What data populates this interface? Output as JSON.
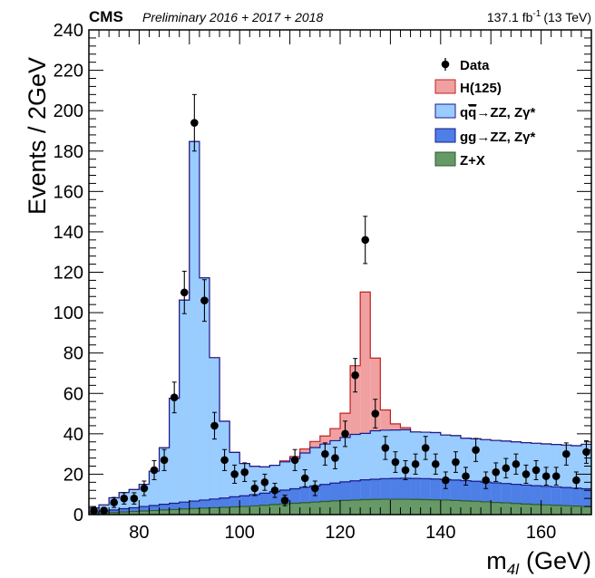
{
  "header": {
    "experiment": "CMS",
    "subtitle": "Preliminary 2016 + 2017 + 2018",
    "lumi_value": "137.1 fb",
    "lumi_exp": "-1",
    "lumi_energy": "(13 TeV)"
  },
  "legend": {
    "data": "Data",
    "higgs": "H(125)",
    "qqzz_q": "q",
    "qqzz_qbar": "q",
    "qqzz_rest": "→ZZ, Zγ*",
    "ggzz": "gg→ZZ, Zγ*",
    "zx": "Z+X"
  },
  "axes": {
    "ylabel": "Events / 2GeV",
    "xlabel_main": "m",
    "xlabel_sub": "4l",
    "xlabel_unit": "(GeV)"
  },
  "colors": {
    "higgs_fill": "#f0a0a0",
    "higgs_line": "#c02020",
    "qqzz_fill": "#99ccff",
    "qqzz_line": "#1a1a8c",
    "ggzz_fill": "#4d7fe6",
    "ggzz_line": "#1a1a8c",
    "zx_fill": "#669966",
    "zx_line": "#2d5a2d",
    "data": "#000000"
  },
  "chart_data": {
    "type": "histogram",
    "xlim": [
      70,
      170
    ],
    "ylim": [
      0,
      240
    ],
    "xticks": [
      80,
      100,
      120,
      140,
      160
    ],
    "yticks": [
      0,
      20,
      40,
      60,
      80,
      100,
      120,
      140,
      160,
      180,
      200,
      220,
      240
    ],
    "bin_edges": [
      70,
      72,
      74,
      76,
      78,
      80,
      82,
      84,
      86,
      88,
      90,
      92,
      94,
      96,
      98,
      100,
      102,
      104,
      106,
      108,
      110,
      112,
      114,
      116,
      118,
      120,
      122,
      124,
      126,
      128,
      130,
      132,
      134,
      136,
      138,
      140,
      142,
      144,
      146,
      148,
      150,
      152,
      154,
      156,
      158,
      160,
      162,
      164,
      166,
      168,
      170
    ],
    "stack_zx": [
      0.5,
      0.8,
      1.0,
      1.3,
      1.5,
      1.8,
      2.0,
      2.3,
      2.5,
      2.8,
      3.0,
      3.2,
      3.4,
      3.6,
      3.8,
      4.0,
      4.3,
      4.6,
      5.0,
      5.3,
      5.6,
      5.9,
      6.2,
      6.5,
      6.8,
      7.0,
      7.2,
      7.4,
      7.5,
      7.6,
      7.6,
      7.6,
      7.5,
      7.4,
      7.3,
      7.2,
      7.0,
      6.8,
      6.6,
      6.3,
      6.0,
      5.8,
      5.5,
      5.2,
      5.0,
      4.8,
      4.6,
      4.4,
      4.2,
      4.0
    ],
    "stack_ggzz": [
      0.8,
      1.0,
      1.3,
      1.6,
      1.9,
      2.2,
      2.5,
      2.8,
      3.1,
      3.4,
      3.7,
      4.0,
      4.3,
      4.6,
      5.0,
      5.3,
      5.6,
      6.0,
      6.4,
      6.8,
      7.2,
      7.6,
      8.0,
      8.4,
      8.8,
      9.2,
      9.5,
      9.8,
      10.0,
      10.2,
      10.3,
      10.4,
      10.4,
      10.4,
      10.3,
      10.2,
      10.1,
      10.0,
      9.9,
      9.8,
      9.7,
      9.6,
      9.5,
      9.4,
      9.3,
      9.2,
      9.1,
      9.0,
      8.9,
      8.8
    ],
    "stack_qqzz": [
      2,
      3,
      6,
      8,
      9,
      11,
      17,
      28,
      52,
      100,
      178,
      110,
      70,
      38,
      22,
      16,
      14,
      13,
      13,
      14,
      15,
      17,
      19,
      20,
      21,
      22,
      23,
      23,
      24,
      24,
      24,
      24,
      23,
      23,
      23,
      22,
      22,
      21,
      21,
      21,
      21,
      21,
      21,
      21,
      21,
      21,
      21,
      21,
      21,
      22
    ],
    "stack_higgs": [
      0,
      0,
      0,
      0,
      0,
      0,
      0,
      0,
      0,
      0,
      0,
      0,
      0,
      0,
      0,
      0,
      0,
      0,
      0,
      0.5,
      1,
      2,
      3,
      4,
      6,
      12,
      34,
      70,
      36,
      10,
      3,
      1,
      0,
      0,
      0,
      0,
      0,
      0,
      0,
      0,
      0,
      0,
      0,
      0,
      0,
      0,
      0,
      0,
      0,
      0
    ],
    "data_points": [
      {
        "x": 71,
        "y": 2,
        "err": 1.5
      },
      {
        "x": 73,
        "y": 2,
        "err": 1.5
      },
      {
        "x": 75,
        "y": 6,
        "err": 2.5
      },
      {
        "x": 77,
        "y": 8,
        "err": 2.8
      },
      {
        "x": 79,
        "y": 8,
        "err": 2.8
      },
      {
        "x": 81,
        "y": 13,
        "err": 3.6
      },
      {
        "x": 83,
        "y": 22,
        "err": 4.7
      },
      {
        "x": 85,
        "y": 27,
        "err": 5.2
      },
      {
        "x": 87,
        "y": 58,
        "err": 7.6
      },
      {
        "x": 89,
        "y": 110,
        "err": 10.5
      },
      {
        "x": 91,
        "y": 194,
        "err": 14
      },
      {
        "x": 93,
        "y": 106,
        "err": 10.3
      },
      {
        "x": 95,
        "y": 44,
        "err": 6.6
      },
      {
        "x": 97,
        "y": 27,
        "err": 5.2
      },
      {
        "x": 99,
        "y": 20,
        "err": 4.5
      },
      {
        "x": 101,
        "y": 21,
        "err": 4.6
      },
      {
        "x": 103,
        "y": 13,
        "err": 3.6
      },
      {
        "x": 105,
        "y": 16,
        "err": 4
      },
      {
        "x": 107,
        "y": 12,
        "err": 3.5
      },
      {
        "x": 109,
        "y": 7,
        "err": 2.6
      },
      {
        "x": 111,
        "y": 27,
        "err": 5.2
      },
      {
        "x": 113,
        "y": 18,
        "err": 4.2
      },
      {
        "x": 115,
        "y": 13,
        "err": 3.6
      },
      {
        "x": 117,
        "y": 30,
        "err": 5.5
      },
      {
        "x": 119,
        "y": 28,
        "err": 5.3
      },
      {
        "x": 121,
        "y": 40,
        "err": 6.3
      },
      {
        "x": 123,
        "y": 69,
        "err": 8.3
      },
      {
        "x": 125,
        "y": 136,
        "err": 11.7
      },
      {
        "x": 127,
        "y": 50,
        "err": 7.1
      },
      {
        "x": 129,
        "y": 33,
        "err": 5.7
      },
      {
        "x": 131,
        "y": 26,
        "err": 5.1
      },
      {
        "x": 133,
        "y": 22,
        "err": 4.7
      },
      {
        "x": 135,
        "y": 25,
        "err": 5
      },
      {
        "x": 137,
        "y": 33,
        "err": 5.7
      },
      {
        "x": 139,
        "y": 25,
        "err": 5
      },
      {
        "x": 141,
        "y": 17,
        "err": 4.1
      },
      {
        "x": 143,
        "y": 26,
        "err": 5.1
      },
      {
        "x": 145,
        "y": 19,
        "err": 4.4
      },
      {
        "x": 147,
        "y": 32,
        "err": 5.7
      },
      {
        "x": 149,
        "y": 17,
        "err": 4.1
      },
      {
        "x": 151,
        "y": 21,
        "err": 4.6
      },
      {
        "x": 153,
        "y": 23,
        "err": 4.8
      },
      {
        "x": 155,
        "y": 25,
        "err": 5
      },
      {
        "x": 157,
        "y": 20,
        "err": 4.5
      },
      {
        "x": 159,
        "y": 22,
        "err": 4.7
      },
      {
        "x": 161,
        "y": 19,
        "err": 4.4
      },
      {
        "x": 163,
        "y": 19,
        "err": 4.4
      },
      {
        "x": 165,
        "y": 30,
        "err": 5.5
      },
      {
        "x": 167,
        "y": 17,
        "err": 4.1
      },
      {
        "x": 169,
        "y": 31,
        "err": 5.6
      }
    ]
  }
}
